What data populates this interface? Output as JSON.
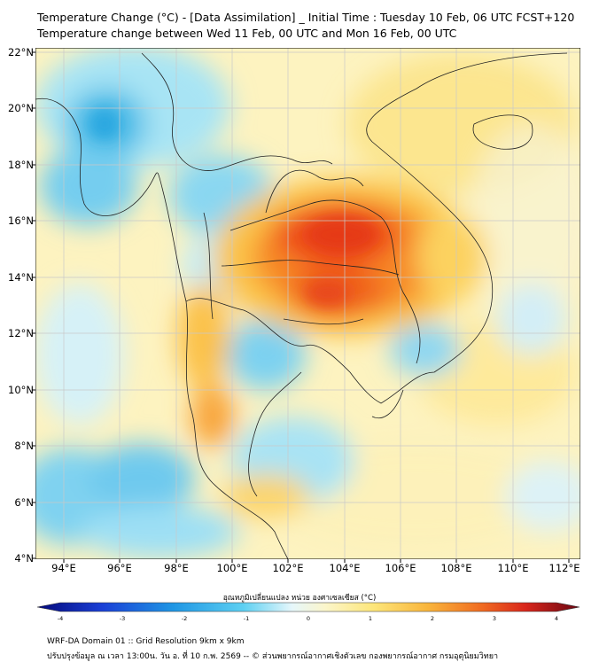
{
  "header": {
    "title_line1": "Temperature Change (°C) - [Data Assimilation] _ Initial Time : Tuesday 10 Feb, 06 UTC FCST+120",
    "title_line2": "Temperature change between Wed 11 Feb, 00 UTC and Mon 16 Feb, 00 UTC"
  },
  "map": {
    "lat_labels": [
      "22°N",
      "20°N",
      "18°N",
      "16°N",
      "14°N",
      "12°N",
      "10°N",
      "8°N",
      "6°N",
      "4°N"
    ],
    "lon_labels": [
      "94°E",
      "96°E",
      "98°E",
      "100°E",
      "102°E",
      "104°E",
      "106°E",
      "108°E",
      "110°E",
      "112°E"
    ],
    "lat_range": [
      4,
      22.2
    ],
    "lon_range": [
      93,
      112.5
    ]
  },
  "colorbar": {
    "title": "อุณหภูมิเปลี่ยนแปลง หน่วย องศาเซลเซียส (°C)",
    "ticks": [
      "-4",
      "-3",
      "-2",
      "-1",
      "0",
      "1",
      "2",
      "3",
      "4"
    ],
    "range": [
      -4,
      4
    ]
  },
  "footer": {
    "line1": "WRF-DA Domain 01 :: Grid Resolution 9km x 9km",
    "line2": "ปรับปรุงข้อมูล ณ เวลา 13:00น. วัน อ. ที่ 10 ก.พ. 2569 -- © ส่วนพยากรณ์อากาศเชิงตัวเลข กองพยากรณ์อากาศ กรมอุตุนิยมวิทยา"
  }
}
